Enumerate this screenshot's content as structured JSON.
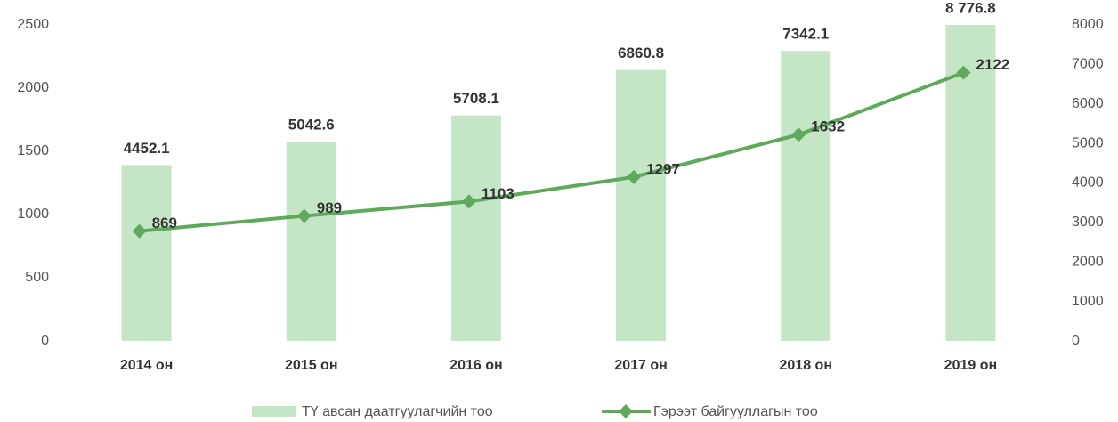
{
  "chart_data": {
    "type": "bar-line",
    "categories": [
      "2014 он",
      "2015 он",
      "2016 он",
      "2017 он",
      "2018 он",
      "2019 он"
    ],
    "series": [
      {
        "name": "ТҮ авсан даатгуулагчийн тоо",
        "type": "bar",
        "axis": "y2",
        "color": "#c5e6c6",
        "values": [
          4452.1,
          5042.6,
          5708.1,
          6860.8,
          7342.1,
          8776.8
        ],
        "value_labels": [
          "4452.1",
          "5042.6",
          "5708.1",
          "6860.8",
          "7342.1",
          "8 776.8"
        ]
      },
      {
        "name": "Гэрээт байгууллагын тоо",
        "type": "line",
        "axis": "y",
        "color": "#5ea95c",
        "values": [
          869,
          989,
          1103,
          1297,
          1632,
          2122
        ]
      }
    ],
    "ylim": [
      0,
      2500
    ],
    "yticks": [
      0,
      500,
      1000,
      1500,
      2000,
      2500
    ],
    "y2lim": [
      0,
      8000
    ],
    "y2ticks": [
      0,
      1000,
      2000,
      3000,
      4000,
      5000,
      6000,
      7000,
      8000
    ],
    "legend": "bottom"
  }
}
